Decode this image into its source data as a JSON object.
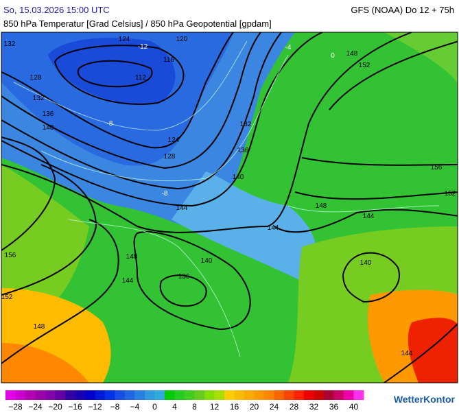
{
  "header": {
    "date": "So, 15.03.2026 15:00 UTC",
    "model": "GFS (NOAA) Do 12 + 75h",
    "subtitle": "850 hPa Temperatur [Grad Celsius] / 850 hPa Geopotential [gpdam]"
  },
  "map": {
    "contour_labels": [
      "124",
      "-12",
      "120",
      "116",
      "112",
      "132",
      "128",
      "132",
      "136",
      "140",
      "-8",
      "124",
      "128",
      "132",
      "136",
      "140",
      "148",
      "152",
      "156",
      "152",
      "148",
      "144",
      "144",
      "144",
      "140",
      "148",
      "144",
      "140",
      "136",
      "156",
      "152",
      "148",
      "144",
      "-4",
      "-8",
      "0"
    ]
  },
  "colorbar": {
    "colors": [
      "#e600e6",
      "#cc00cc",
      "#b300b3",
      "#9900a6",
      "#7f00a6",
      "#6600a6",
      "#3300a6",
      "#1a00b3",
      "#0000cc",
      "#0019d9",
      "#0033e6",
      "#1a4de6",
      "#2266e6",
      "#2a80e0",
      "#3399dd",
      "#33aadd",
      "#00cc00",
      "#22cc22",
      "#44cc22",
      "#66cc22",
      "#88dd00",
      "#aadd00",
      "#ffcc00",
      "#ffbb00",
      "#ffaa00",
      "#ff9900",
      "#ff8800",
      "#ff6600",
      "#ff4400",
      "#ff2200",
      "#ee0000",
      "#cc0000",
      "#aa0033",
      "#cc0066",
      "#ee00aa",
      "#ff33ee"
    ],
    "labels": [
      "−28",
      "−24",
      "−20",
      "−16",
      "−12",
      "−8",
      "−4",
      "0",
      "4",
      "8",
      "12",
      "16",
      "20",
      "24",
      "28",
      "32",
      "36",
      "40"
    ]
  },
  "brand": "WetterKontor"
}
